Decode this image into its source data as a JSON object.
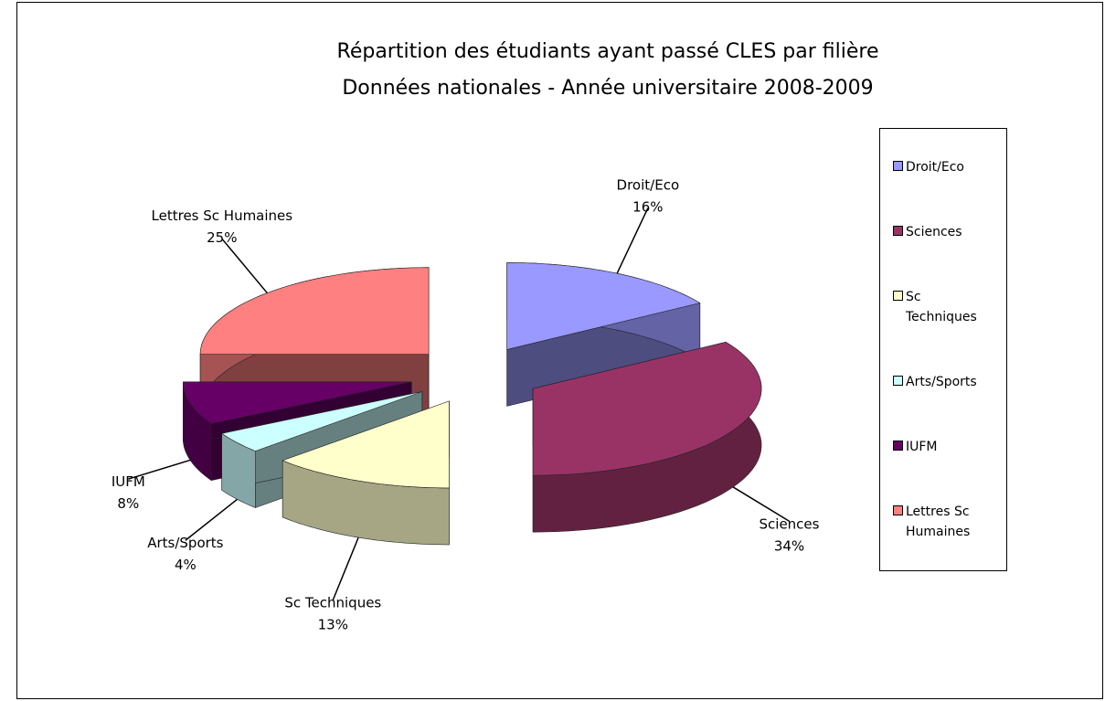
{
  "chart_data": {
    "type": "pie",
    "title": "Répartition des étudiants ayant passé CLES par filière",
    "subtitle": "Données nationales - Année universitaire 2008-2009",
    "categories": [
      "Droit/Eco",
      "Sciences",
      "Sc Techniques",
      "Arts/Sports",
      "IUFM",
      "Lettres Sc Humaines"
    ],
    "values": [
      16,
      34,
      13,
      4,
      8,
      25
    ],
    "value_labels": [
      "16%",
      "34%",
      "13%",
      "4%",
      "8%",
      "25%"
    ],
    "colors": [
      "#9999ff",
      "#993366",
      "#ffffcc",
      "#ccffff",
      "#660066",
      "#ff8080"
    ],
    "legend": "right"
  }
}
